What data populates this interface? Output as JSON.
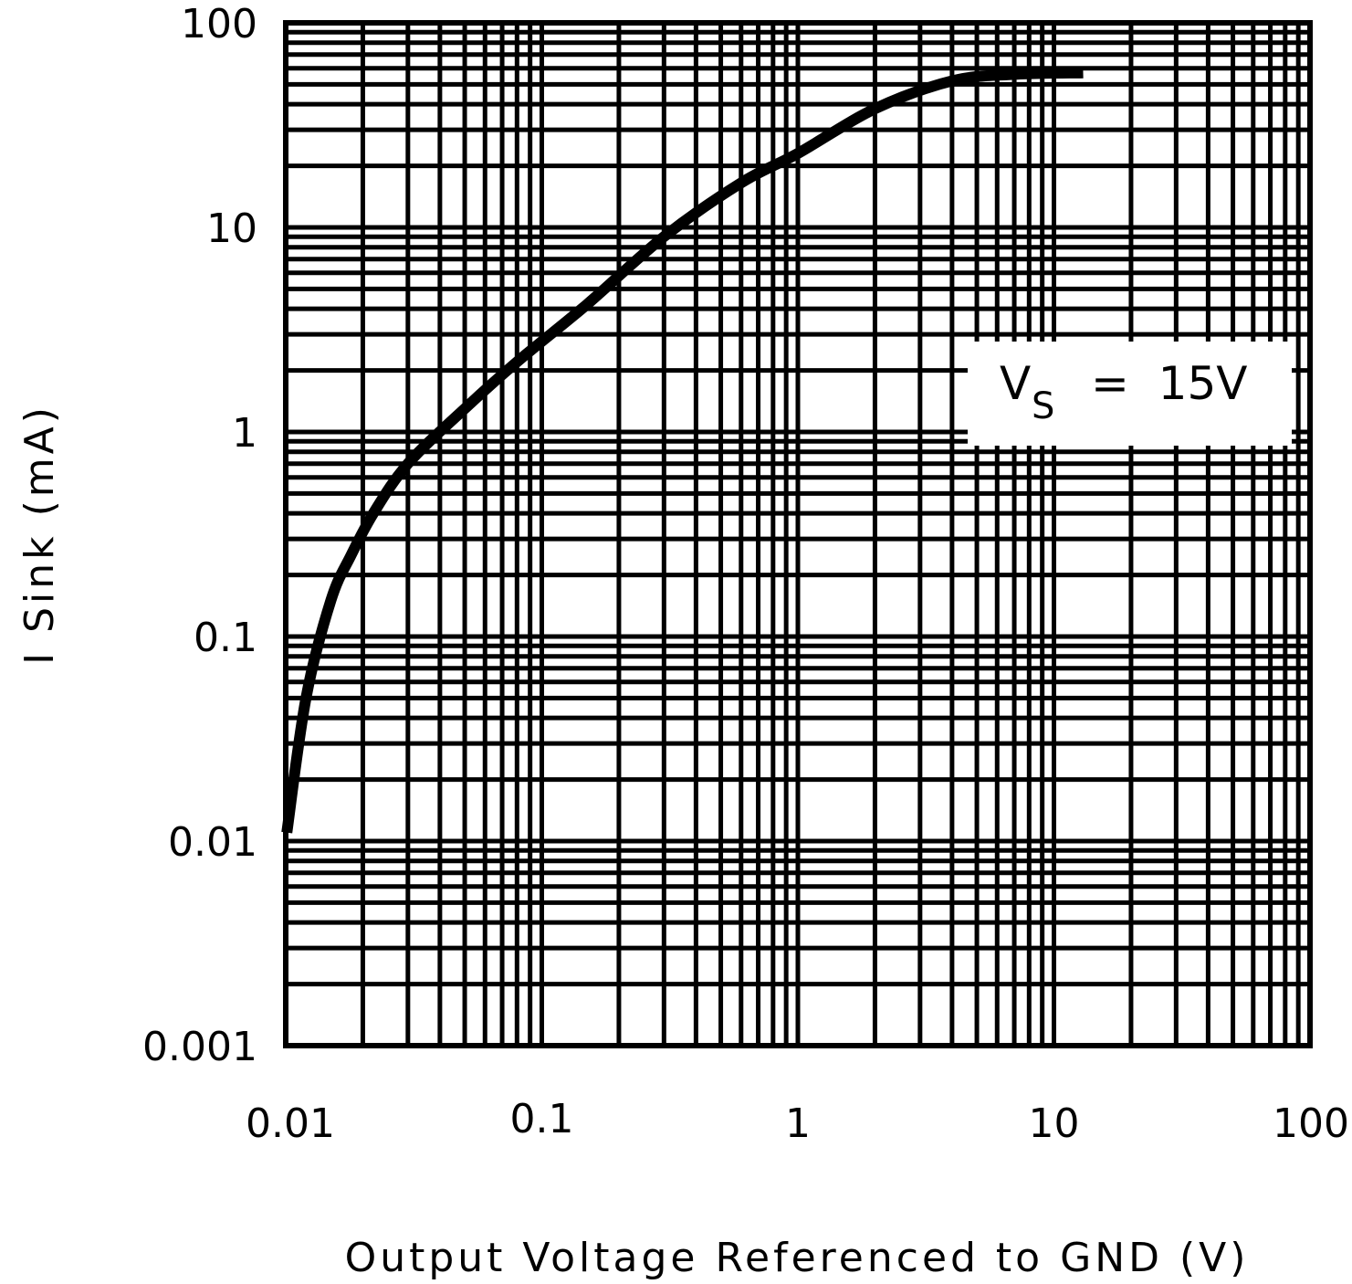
{
  "chart_data": {
    "type": "line",
    "title": "",
    "xlabel": "Output Voltage Referenced to GND (V)",
    "ylabel": "I Sink (mA)",
    "xscale": "log",
    "yscale": "log",
    "xlim": [
      0.01,
      100
    ],
    "ylim": [
      0.001,
      100
    ],
    "x_ticks": [
      "0.01",
      "0.1",
      "1",
      "10",
      "100"
    ],
    "y_ticks": [
      "0.001",
      "0.01",
      "0.1",
      "1",
      "10",
      "100"
    ],
    "grid": true,
    "annotations": [
      {
        "text": "VS = 15V",
        "main": "V",
        "subscript": "S",
        "rest": "=  15V"
      }
    ],
    "series": [
      {
        "name": "VS = 15V",
        "x": [
          0.0101,
          0.012,
          0.015,
          0.018,
          0.022,
          0.03,
          0.05,
          0.08,
          0.15,
          0.3,
          0.6,
          1,
          2,
          4,
          7,
          13
        ],
        "y": [
          0.011,
          0.05,
          0.15,
          0.25,
          0.4,
          0.7,
          1.3,
          2.2,
          4.2,
          9,
          16.5,
          23,
          38,
          52,
          56,
          57
        ]
      }
    ]
  },
  "colors": {
    "line": "#000000",
    "grid": "#000000",
    "background": "#ffffff"
  }
}
